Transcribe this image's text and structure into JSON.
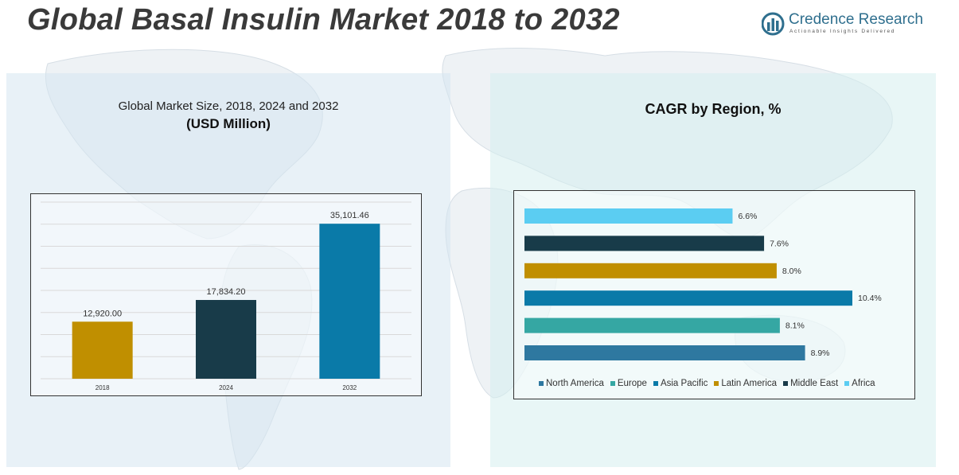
{
  "header": {
    "title": "Global Basal Insulin Market 2018 to 2032",
    "logo_name": "Credence Research",
    "logo_tagline": "Actionable Insights Delivered"
  },
  "left_panel": {
    "subtitle": "Global Market Size, 2018, 2024 and 2032",
    "unit": "(USD Million)"
  },
  "right_panel": {
    "title": "CAGR by Region, %"
  },
  "chart_data": [
    {
      "type": "bar",
      "title": "Global Market Size, 2018, 2024 and 2032",
      "ylabel": "USD Million",
      "categories": [
        "2018",
        "2024",
        "2032"
      ],
      "values": [
        12920.0,
        17834.2,
        35101.46
      ],
      "value_labels": [
        "12,920.00",
        "17,834.20",
        "35,101.46"
      ],
      "colors": [
        "#c08f00",
        "#183b49",
        "#0a7aa8"
      ],
      "ylim": [
        0,
        40000
      ],
      "grid": true
    },
    {
      "type": "bar",
      "orientation": "horizontal",
      "title": "CAGR by Region, %",
      "series": [
        {
          "name": "North America",
          "value": 8.9,
          "label": "8.9%",
          "color": "#2e78a0"
        },
        {
          "name": "Europe",
          "value": 8.1,
          "label": "8.1%",
          "color": "#35a7a3"
        },
        {
          "name": "Asia Pacific",
          "value": 10.4,
          "label": "10.4%",
          "color": "#0a7aa8"
        },
        {
          "name": "Latin America",
          "value": 8.0,
          "label": "8.0%",
          "color": "#c08f00"
        },
        {
          "name": "Middle East",
          "value": 7.6,
          "label": "7.6%",
          "color": "#183b49"
        },
        {
          "name": "Africa",
          "value": 6.6,
          "label": "6.6%",
          "color": "#5bcdf2"
        }
      ],
      "bar_order_top_to_bottom": [
        "Africa",
        "Middle East",
        "Latin America",
        "Asia Pacific",
        "Europe",
        "North America"
      ],
      "legend_position": "bottom",
      "xlim": [
        0,
        11
      ]
    }
  ]
}
